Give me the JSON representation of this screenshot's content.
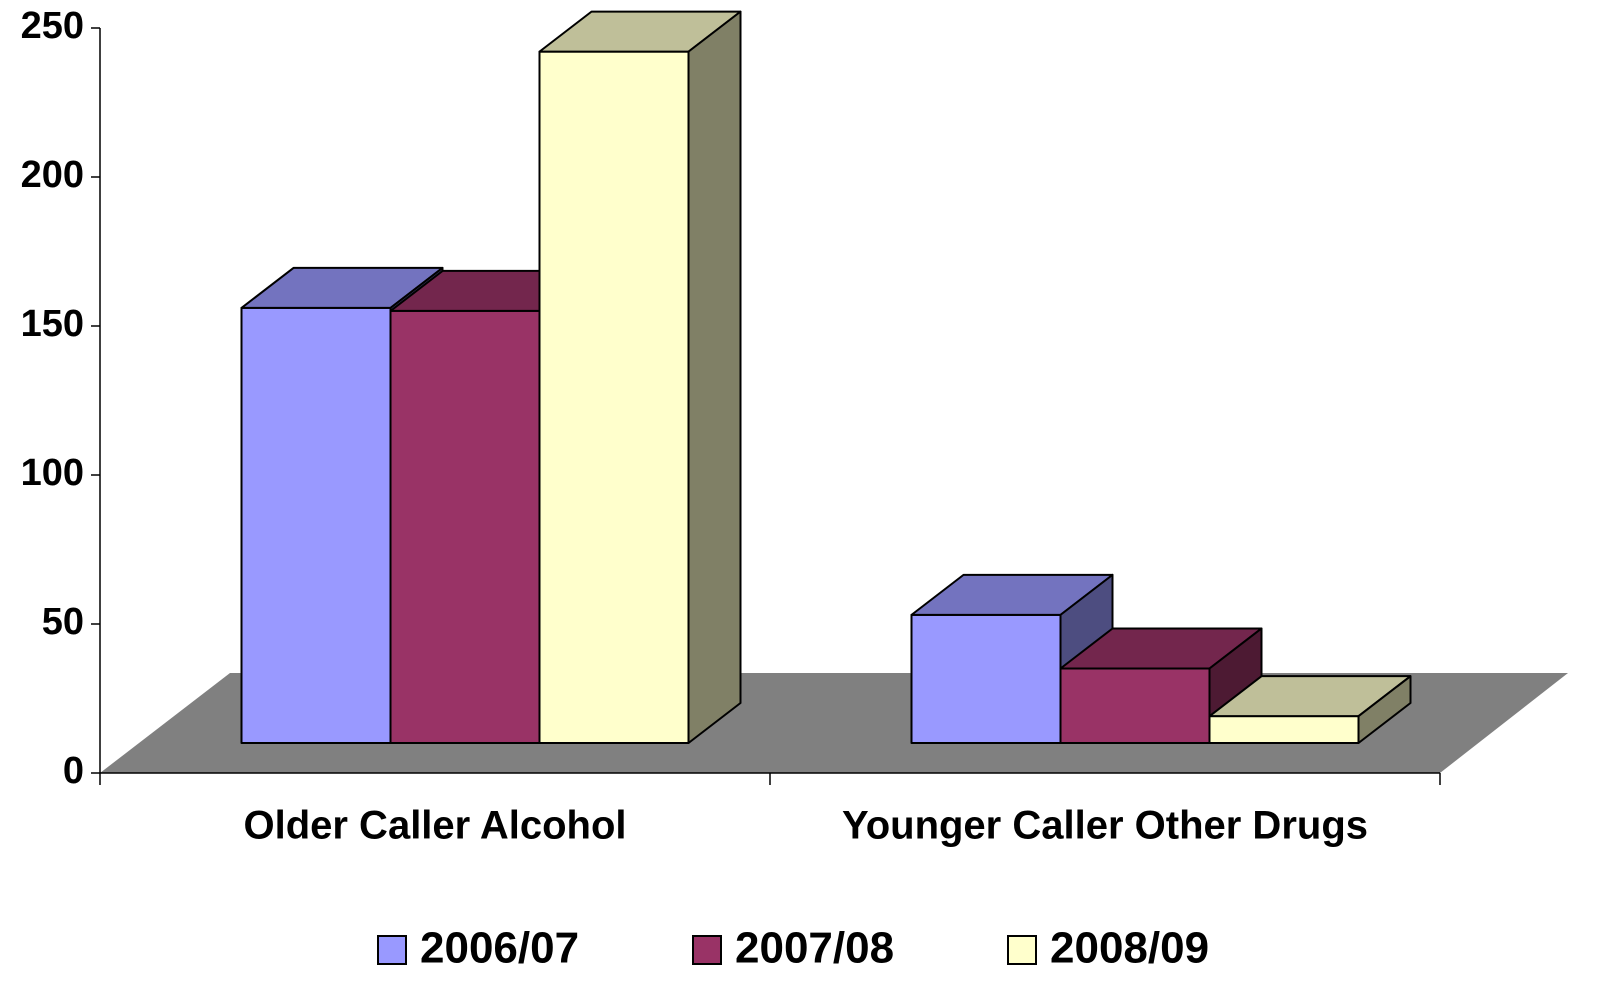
{
  "chart_data": {
    "type": "bar3d",
    "categories": [
      "Older Caller Alcohol",
      "Younger Caller Other Drugs"
    ],
    "series": [
      {
        "name": "2006/07",
        "color": "#9999ff",
        "values": [
          146,
          43
        ]
      },
      {
        "name": "2007/08",
        "color": "#993366",
        "values": [
          145,
          25
        ]
      },
      {
        "name": "2008/09",
        "color": "#ffffcc",
        "values": [
          232,
          9
        ]
      }
    ],
    "ylim": [
      0,
      250
    ],
    "yticks": [
      0,
      50,
      100,
      150,
      200,
      250
    ],
    "legend": "bottom"
  }
}
